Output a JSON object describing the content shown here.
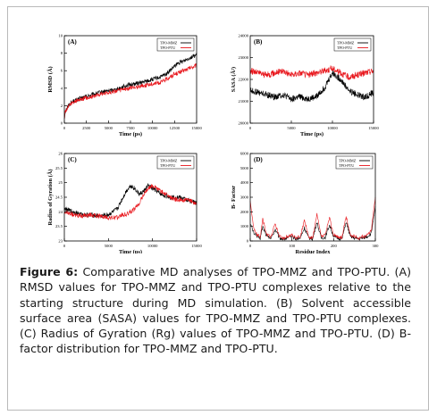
{
  "caption": {
    "label": "Figure 6:",
    "text": "Comparative MD analyses of TPO-MMZ and TPO-PTU. (A) RMSD values for TPO-MMZ and TPO-PTU complexes relative to the starting structure during MD simulation. (B) Solvent accessible surface area (SASA) values for TPO-MMZ and TPO-PTU complexes. (C) Radius of Gyration (Rg) values of TPO-MMZ and TPO-PTU. (D) B-factor distribution for TPO-MMZ and TPO-PTU."
  },
  "colors": {
    "mmz": "#000000",
    "ptu": "#e8151b"
  },
  "chart_data": [
    {
      "id": "A",
      "type": "line",
      "panel_label": "(A)",
      "xlabel": "Time (ps)",
      "ylabel": "RMSD (Å)",
      "xlim": [
        0,
        15000
      ],
      "ylim": [
        0,
        10
      ],
      "xticks": [
        "0",
        "2500",
        "5000",
        "7500",
        "10000",
        "12500",
        "15000"
      ],
      "yticks": [
        "0",
        "2",
        "4",
        "6",
        "8",
        "10"
      ],
      "x": [
        0,
        100,
        500,
        1000,
        1500,
        2000,
        3000,
        4000,
        5000,
        6000,
        7000,
        8000,
        9000,
        10000,
        11000,
        11500,
        12000,
        12500,
        13000,
        13500,
        14000,
        14500,
        15000
      ],
      "series": [
        {
          "name": "TPO-MMZ",
          "color": "mmz",
          "noise": 0.25,
          "values": [
            0.5,
            1.4,
            2.1,
            2.5,
            2.7,
            2.9,
            3.2,
            3.5,
            3.7,
            3.9,
            4.3,
            4.5,
            4.7,
            5.0,
            5.3,
            5.6,
            6.0,
            6.5,
            6.9,
            7.1,
            7.4,
            7.6,
            7.8
          ]
        },
        {
          "name": "TPO-PTU",
          "color": "ptu",
          "noise": 0.25,
          "values": [
            0.5,
            1.3,
            2.0,
            2.4,
            2.6,
            2.8,
            3.0,
            3.3,
            3.5,
            3.7,
            3.9,
            4.1,
            4.3,
            4.5,
            4.7,
            5.0,
            5.3,
            5.6,
            5.8,
            6.0,
            6.2,
            6.4,
            6.6
          ]
        }
      ]
    },
    {
      "id": "B",
      "type": "line",
      "panel_label": "(B)",
      "xlabel": "Time (ps)",
      "ylabel": "SASA (Å²)",
      "xlim": [
        0,
        15000
      ],
      "ylim": [
        20000,
        24000
      ],
      "xticks": [
        "0",
        "5000",
        "10000",
        "15000"
      ],
      "yticks": [
        "20000",
        "21000",
        "22000",
        "23000",
        "24000"
      ],
      "x": [
        0,
        1000,
        2000,
        3000,
        4000,
        5000,
        6000,
        7000,
        8000,
        9000,
        10000,
        11000,
        12000,
        13000,
        14000,
        15000
      ],
      "series": [
        {
          "name": "TPO-MMZ",
          "color": "mmz",
          "noise": 150,
          "values": [
            21500,
            21400,
            21300,
            21200,
            21300,
            21100,
            21200,
            21100,
            21200,
            21600,
            22300,
            22000,
            21500,
            21300,
            21200,
            21400
          ]
        },
        {
          "name": "TPO-PTU",
          "color": "ptu",
          "noise": 150,
          "values": [
            22400,
            22300,
            22200,
            22300,
            22400,
            22200,
            22300,
            22200,
            22300,
            22400,
            22500,
            22300,
            22100,
            22200,
            22300,
            22400
          ]
        }
      ]
    },
    {
      "id": "C",
      "type": "line",
      "panel_label": "(C)",
      "xlabel": "Time (ps)",
      "ylabel": "Radius of Gyration (Å)",
      "xlim": [
        0,
        15000
      ],
      "ylim": [
        23,
        26
      ],
      "xticks": [
        "0",
        "5000",
        "10000",
        "15000"
      ],
      "yticks": [
        "23",
        "23.5",
        "24",
        "24.5",
        "25",
        "25.5",
        "26"
      ],
      "x": [
        0,
        1000,
        2000,
        3000,
        4000,
        5000,
        6000,
        6500,
        7000,
        7500,
        8000,
        8500,
        9000,
        9500,
        10000,
        10500,
        11000,
        12000,
        13000,
        14000,
        15000
      ],
      "series": [
        {
          "name": "TPO-MMZ",
          "color": "mmz",
          "noise": 0.08,
          "values": [
            24.1,
            24.0,
            23.9,
            23.9,
            23.85,
            23.9,
            24.1,
            24.4,
            24.7,
            24.9,
            24.8,
            24.6,
            24.7,
            24.9,
            24.8,
            24.7,
            24.6,
            24.5,
            24.5,
            24.4,
            24.3
          ]
        },
        {
          "name": "TPO-PTU",
          "color": "ptu",
          "noise": 0.08,
          "values": [
            24.0,
            23.9,
            23.85,
            23.9,
            23.85,
            23.8,
            23.8,
            23.9,
            23.9,
            24.0,
            24.1,
            24.3,
            24.6,
            24.8,
            24.9,
            24.8,
            24.7,
            24.5,
            24.4,
            24.4,
            24.3
          ]
        }
      ]
    },
    {
      "id": "D",
      "type": "line",
      "panel_label": "(D)",
      "xlabel": "Residue Index",
      "ylabel": "B- Factor",
      "xlim": [
        0,
        300
      ],
      "ylim": [
        0,
        6000
      ],
      "xticks": [
        "0",
        "100",
        "200",
        "300"
      ],
      "yticks": [
        "0",
        "1000",
        "2000",
        "3000",
        "4000",
        "5000",
        "6000"
      ],
      "x": [
        0,
        8,
        16,
        24,
        30,
        40,
        50,
        60,
        70,
        80,
        90,
        100,
        110,
        120,
        130,
        140,
        150,
        160,
        170,
        180,
        190,
        200,
        210,
        220,
        230,
        240,
        250,
        260,
        270,
        280,
        290,
        300
      ],
      "series": [
        {
          "name": "TPO-MMZ",
          "color": "mmz",
          "noise": 120,
          "values": [
            1200,
            600,
            300,
            200,
            1000,
            300,
            200,
            800,
            200,
            150,
            200,
            300,
            150,
            200,
            900,
            200,
            150,
            1300,
            200,
            250,
            1100,
            300,
            200,
            150,
            1300,
            300,
            200,
            150,
            200,
            300,
            500,
            2300
          ]
        },
        {
          "name": "TPO-PTU",
          "color": "ptu",
          "noise": 120,
          "values": [
            2800,
            900,
            400,
            300,
            1500,
            400,
            300,
            1200,
            300,
            200,
            300,
            400,
            200,
            300,
            1400,
            300,
            200,
            1800,
            300,
            400,
            1600,
            400,
            300,
            200,
            1700,
            400,
            300,
            200,
            300,
            400,
            700,
            3000
          ]
        }
      ]
    }
  ]
}
